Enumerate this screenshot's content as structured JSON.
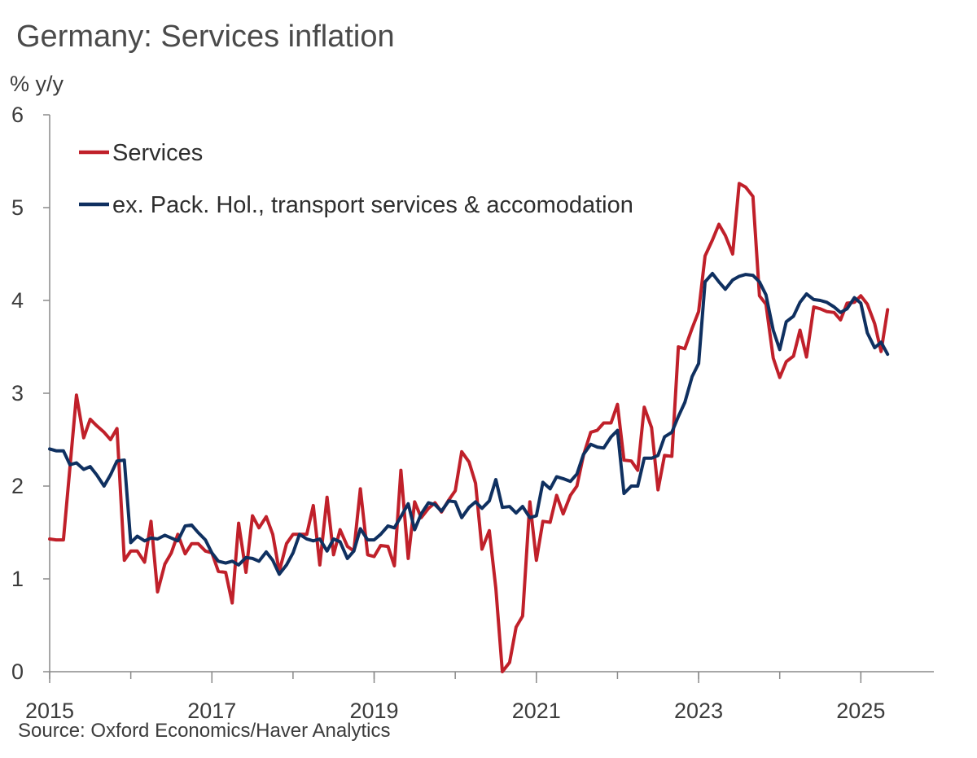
{
  "chart_data": {
    "type": "line",
    "title": "Germany: Services inflation",
    "ylabel": "% y/y",
    "xlabel": "",
    "source": "Source: Oxford Economics/Haver Analytics",
    "xlim": [
      2015.0,
      2025.9
    ],
    "ylim": [
      0,
      6
    ],
    "x_ticks": [
      2015,
      2017,
      2019,
      2021,
      2023,
      2025
    ],
    "y_ticks": [
      0,
      1,
      2,
      3,
      4,
      5,
      6
    ],
    "legend_position": "top-left",
    "series": [
      {
        "name": "Services",
        "color": "#c0202a",
        "points": [
          [
            2015.0,
            1.43
          ],
          [
            2015.08,
            1.42
          ],
          [
            2015.17,
            1.42
          ],
          [
            2015.25,
            2.2
          ],
          [
            2015.33,
            2.98
          ],
          [
            2015.42,
            2.52
          ],
          [
            2015.5,
            2.72
          ],
          [
            2015.58,
            2.65
          ],
          [
            2015.67,
            2.58
          ],
          [
            2015.75,
            2.5
          ],
          [
            2015.83,
            2.62
          ],
          [
            2015.92,
            1.2
          ],
          [
            2016.0,
            1.3
          ],
          [
            2016.08,
            1.3
          ],
          [
            2016.17,
            1.18
          ],
          [
            2016.25,
            1.62
          ],
          [
            2016.33,
            0.86
          ],
          [
            2016.42,
            1.16
          ],
          [
            2016.5,
            1.28
          ],
          [
            2016.58,
            1.48
          ],
          [
            2016.67,
            1.27
          ],
          [
            2016.75,
            1.38
          ],
          [
            2016.83,
            1.38
          ],
          [
            2016.92,
            1.3
          ],
          [
            2017.0,
            1.28
          ],
          [
            2017.08,
            1.08
          ],
          [
            2017.17,
            1.07
          ],
          [
            2017.25,
            0.74
          ],
          [
            2017.33,
            1.6
          ],
          [
            2017.42,
            1.07
          ],
          [
            2017.5,
            1.68
          ],
          [
            2017.58,
            1.55
          ],
          [
            2017.67,
            1.67
          ],
          [
            2017.75,
            1.48
          ],
          [
            2017.83,
            1.08
          ],
          [
            2017.92,
            1.38
          ],
          [
            2018.0,
            1.48
          ],
          [
            2018.08,
            1.48
          ],
          [
            2018.17,
            1.48
          ],
          [
            2018.25,
            1.79
          ],
          [
            2018.33,
            1.15
          ],
          [
            2018.42,
            1.88
          ],
          [
            2018.5,
            1.26
          ],
          [
            2018.58,
            1.53
          ],
          [
            2018.67,
            1.35
          ],
          [
            2018.75,
            1.3
          ],
          [
            2018.83,
            1.97
          ],
          [
            2018.92,
            1.26
          ],
          [
            2019.0,
            1.24
          ],
          [
            2019.08,
            1.36
          ],
          [
            2019.17,
            1.35
          ],
          [
            2019.25,
            1.14
          ],
          [
            2019.33,
            2.17
          ],
          [
            2019.42,
            1.22
          ],
          [
            2019.5,
            1.83
          ],
          [
            2019.58,
            1.66
          ],
          [
            2019.67,
            1.76
          ],
          [
            2019.75,
            1.82
          ],
          [
            2019.83,
            1.72
          ],
          [
            2019.92,
            1.85
          ],
          [
            2020.0,
            1.95
          ],
          [
            2020.08,
            2.37
          ],
          [
            2020.17,
            2.26
          ],
          [
            2020.25,
            2.03
          ],
          [
            2020.33,
            1.32
          ],
          [
            2020.42,
            1.52
          ],
          [
            2020.5,
            0.9
          ],
          [
            2020.58,
            0.0
          ],
          [
            2020.67,
            0.1
          ],
          [
            2020.75,
            0.48
          ],
          [
            2020.83,
            0.6
          ],
          [
            2020.92,
            1.83
          ],
          [
            2021.0,
            1.2
          ],
          [
            2021.08,
            1.62
          ],
          [
            2021.17,
            1.61
          ],
          [
            2021.25,
            1.9
          ],
          [
            2021.33,
            1.7
          ],
          [
            2021.42,
            1.9
          ],
          [
            2021.5,
            2.0
          ],
          [
            2021.58,
            2.33
          ],
          [
            2021.67,
            2.58
          ],
          [
            2021.75,
            2.6
          ],
          [
            2021.83,
            2.68
          ],
          [
            2021.92,
            2.68
          ],
          [
            2022.0,
            2.88
          ],
          [
            2022.08,
            2.28
          ],
          [
            2022.17,
            2.27
          ],
          [
            2022.25,
            2.17
          ],
          [
            2022.33,
            2.85
          ],
          [
            2022.42,
            2.63
          ],
          [
            2022.5,
            1.96
          ],
          [
            2022.58,
            2.33
          ],
          [
            2022.67,
            2.32
          ],
          [
            2022.75,
            3.5
          ],
          [
            2022.83,
            3.48
          ],
          [
            2022.92,
            3.7
          ],
          [
            2023.0,
            3.88
          ],
          [
            2023.08,
            4.48
          ],
          [
            2023.17,
            4.65
          ],
          [
            2023.25,
            4.82
          ],
          [
            2023.33,
            4.7
          ],
          [
            2023.42,
            4.5
          ],
          [
            2023.5,
            5.26
          ],
          [
            2023.58,
            5.22
          ],
          [
            2023.67,
            5.12
          ],
          [
            2023.75,
            4.05
          ],
          [
            2023.83,
            3.96
          ],
          [
            2023.92,
            3.38
          ],
          [
            2024.0,
            3.17
          ],
          [
            2024.08,
            3.34
          ],
          [
            2024.17,
            3.4
          ],
          [
            2024.25,
            3.68
          ],
          [
            2024.33,
            3.39
          ],
          [
            2024.42,
            3.93
          ],
          [
            2024.5,
            3.91
          ],
          [
            2024.58,
            3.88
          ],
          [
            2024.67,
            3.87
          ],
          [
            2024.75,
            3.79
          ],
          [
            2024.83,
            3.97
          ],
          [
            2024.92,
            3.98
          ],
          [
            2025.0,
            4.05
          ],
          [
            2025.08,
            3.96
          ],
          [
            2025.17,
            3.75
          ],
          [
            2025.25,
            3.45
          ],
          [
            2025.33,
            3.9
          ]
        ]
      },
      {
        "name": "ex. Pack. Hol., transport services & accomodation",
        "color": "#0f3060",
        "points": [
          [
            2015.0,
            2.4
          ],
          [
            2015.08,
            2.38
          ],
          [
            2015.17,
            2.38
          ],
          [
            2015.25,
            2.23
          ],
          [
            2015.33,
            2.25
          ],
          [
            2015.42,
            2.18
          ],
          [
            2015.5,
            2.21
          ],
          [
            2015.58,
            2.12
          ],
          [
            2015.67,
            2.0
          ],
          [
            2015.75,
            2.12
          ],
          [
            2015.83,
            2.27
          ],
          [
            2015.92,
            2.28
          ],
          [
            2016.0,
            1.39
          ],
          [
            2016.08,
            1.46
          ],
          [
            2016.17,
            1.41
          ],
          [
            2016.25,
            1.44
          ],
          [
            2016.33,
            1.43
          ],
          [
            2016.42,
            1.47
          ],
          [
            2016.5,
            1.44
          ],
          [
            2016.58,
            1.41
          ],
          [
            2016.67,
            1.57
          ],
          [
            2016.75,
            1.58
          ],
          [
            2016.83,
            1.5
          ],
          [
            2016.92,
            1.42
          ],
          [
            2017.0,
            1.28
          ],
          [
            2017.08,
            1.19
          ],
          [
            2017.17,
            1.17
          ],
          [
            2017.25,
            1.19
          ],
          [
            2017.33,
            1.15
          ],
          [
            2017.42,
            1.23
          ],
          [
            2017.5,
            1.22
          ],
          [
            2017.58,
            1.19
          ],
          [
            2017.67,
            1.29
          ],
          [
            2017.75,
            1.2
          ],
          [
            2017.83,
            1.05
          ],
          [
            2017.92,
            1.15
          ],
          [
            2018.0,
            1.28
          ],
          [
            2018.08,
            1.48
          ],
          [
            2018.17,
            1.43
          ],
          [
            2018.25,
            1.41
          ],
          [
            2018.33,
            1.43
          ],
          [
            2018.42,
            1.3
          ],
          [
            2018.5,
            1.43
          ],
          [
            2018.58,
            1.4
          ],
          [
            2018.67,
            1.22
          ],
          [
            2018.75,
            1.3
          ],
          [
            2018.83,
            1.54
          ],
          [
            2018.92,
            1.42
          ],
          [
            2019.0,
            1.42
          ],
          [
            2019.08,
            1.48
          ],
          [
            2019.17,
            1.57
          ],
          [
            2019.25,
            1.55
          ],
          [
            2019.33,
            1.67
          ],
          [
            2019.42,
            1.81
          ],
          [
            2019.5,
            1.53
          ],
          [
            2019.58,
            1.7
          ],
          [
            2019.67,
            1.82
          ],
          [
            2019.75,
            1.8
          ],
          [
            2019.83,
            1.73
          ],
          [
            2019.92,
            1.84
          ],
          [
            2020.0,
            1.83
          ],
          [
            2020.08,
            1.66
          ],
          [
            2020.17,
            1.77
          ],
          [
            2020.25,
            1.83
          ],
          [
            2020.33,
            1.76
          ],
          [
            2020.42,
            1.84
          ],
          [
            2020.5,
            2.07
          ],
          [
            2020.58,
            1.77
          ],
          [
            2020.67,
            1.78
          ],
          [
            2020.75,
            1.71
          ],
          [
            2020.83,
            1.78
          ],
          [
            2020.92,
            1.66
          ],
          [
            2021.0,
            1.68
          ],
          [
            2021.08,
            2.04
          ],
          [
            2021.17,
            1.97
          ],
          [
            2021.25,
            2.1
          ],
          [
            2021.33,
            2.08
          ],
          [
            2021.42,
            2.05
          ],
          [
            2021.5,
            2.13
          ],
          [
            2021.58,
            2.34
          ],
          [
            2021.67,
            2.45
          ],
          [
            2021.75,
            2.42
          ],
          [
            2021.83,
            2.41
          ],
          [
            2021.92,
            2.53
          ],
          [
            2022.0,
            2.6
          ],
          [
            2022.08,
            1.92
          ],
          [
            2022.17,
            2.0
          ],
          [
            2022.25,
            2.0
          ],
          [
            2022.33,
            2.3
          ],
          [
            2022.42,
            2.3
          ],
          [
            2022.5,
            2.33
          ],
          [
            2022.58,
            2.53
          ],
          [
            2022.67,
            2.58
          ],
          [
            2022.75,
            2.75
          ],
          [
            2022.83,
            2.9
          ],
          [
            2022.92,
            3.18
          ],
          [
            2023.0,
            3.32
          ],
          [
            2023.08,
            4.2
          ],
          [
            2023.17,
            4.29
          ],
          [
            2023.25,
            4.2
          ],
          [
            2023.33,
            4.12
          ],
          [
            2023.42,
            4.22
          ],
          [
            2023.5,
            4.26
          ],
          [
            2023.58,
            4.28
          ],
          [
            2023.67,
            4.27
          ],
          [
            2023.75,
            4.2
          ],
          [
            2023.83,
            4.06
          ],
          [
            2023.92,
            3.68
          ],
          [
            2024.0,
            3.47
          ],
          [
            2024.08,
            3.77
          ],
          [
            2024.17,
            3.83
          ],
          [
            2024.25,
            3.98
          ],
          [
            2024.33,
            4.07
          ],
          [
            2024.42,
            4.01
          ],
          [
            2024.5,
            4.0
          ],
          [
            2024.58,
            3.98
          ],
          [
            2024.67,
            3.93
          ],
          [
            2024.75,
            3.87
          ],
          [
            2024.83,
            3.91
          ],
          [
            2024.92,
            4.03
          ],
          [
            2025.0,
            3.97
          ],
          [
            2025.08,
            3.65
          ],
          [
            2025.17,
            3.49
          ],
          [
            2025.25,
            3.55
          ],
          [
            2025.33,
            3.42
          ]
        ]
      }
    ]
  }
}
